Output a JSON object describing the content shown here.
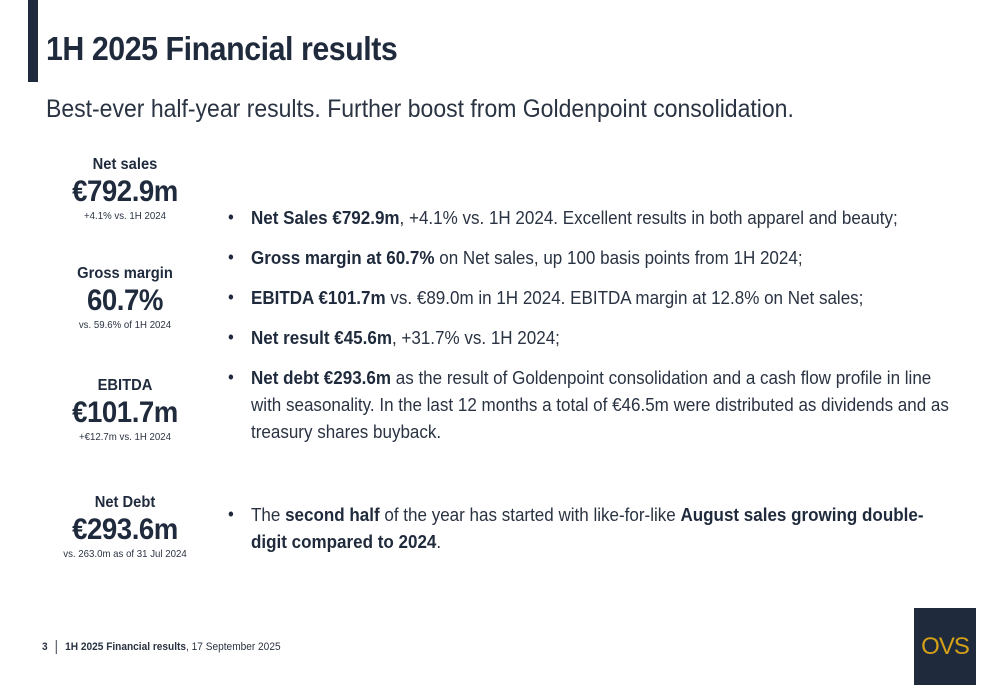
{
  "header": {
    "title": "1H 2025 Financial results",
    "subtitle": "Best-ever half-year results. Further boost from Goldenpoint consolidation."
  },
  "kpis": [
    {
      "label": "Net sales",
      "value": "€792.9m",
      "note": "+4.1% vs. 1H 2024"
    },
    {
      "label": "Gross margin",
      "value": "60.7%",
      "note": "vs. 59.6% of 1H 2024"
    },
    {
      "label": "EBITDA",
      "value": "€101.7m",
      "note": "+€12.7m vs. 1H 2024"
    },
    {
      "label": "Net Debt",
      "value": "€293.6m",
      "note": "vs. 263.0m as of 31 Jul 2024"
    }
  ],
  "bullets": [
    {
      "bold": "Net Sales €792.9m",
      "text": ", +4.1% vs. 1H 2024. Excellent results in both apparel and beauty;"
    },
    {
      "bold": "Gross margin at 60.7%",
      "text": " on Net sales, up 100 basis points from 1H 2024;"
    },
    {
      "bold": "EBITDA €101.7m",
      "text": " vs. €89.0m in 1H 2024. EBITDA margin at 12.8% on Net sales;"
    },
    {
      "bold": "Net result €45.6m",
      "text": ", +31.7% vs. 1H 2024;"
    },
    {
      "bold": "Net debt €293.6m",
      "text": " as the result of Goldenpoint consolidation and a cash flow profile in line with seasonality. In the last 12 months a total of €46.5m were distributed as dividends and as treasury shares buyback."
    }
  ],
  "outlook": {
    "pre": "The ",
    "bold1": "second half",
    "mid": " of the year has started with like-for-like ",
    "bold2": "August sales growing double-digit compared to 2024",
    "post": "."
  },
  "footer": {
    "page_number": "3",
    "doc_title": "1H 2025 Financial results",
    "date": ", 17 September 2025"
  },
  "logo": {
    "text": "OVS"
  },
  "colors": {
    "navy": "#1f2a3c",
    "gold": "#d4a017"
  }
}
